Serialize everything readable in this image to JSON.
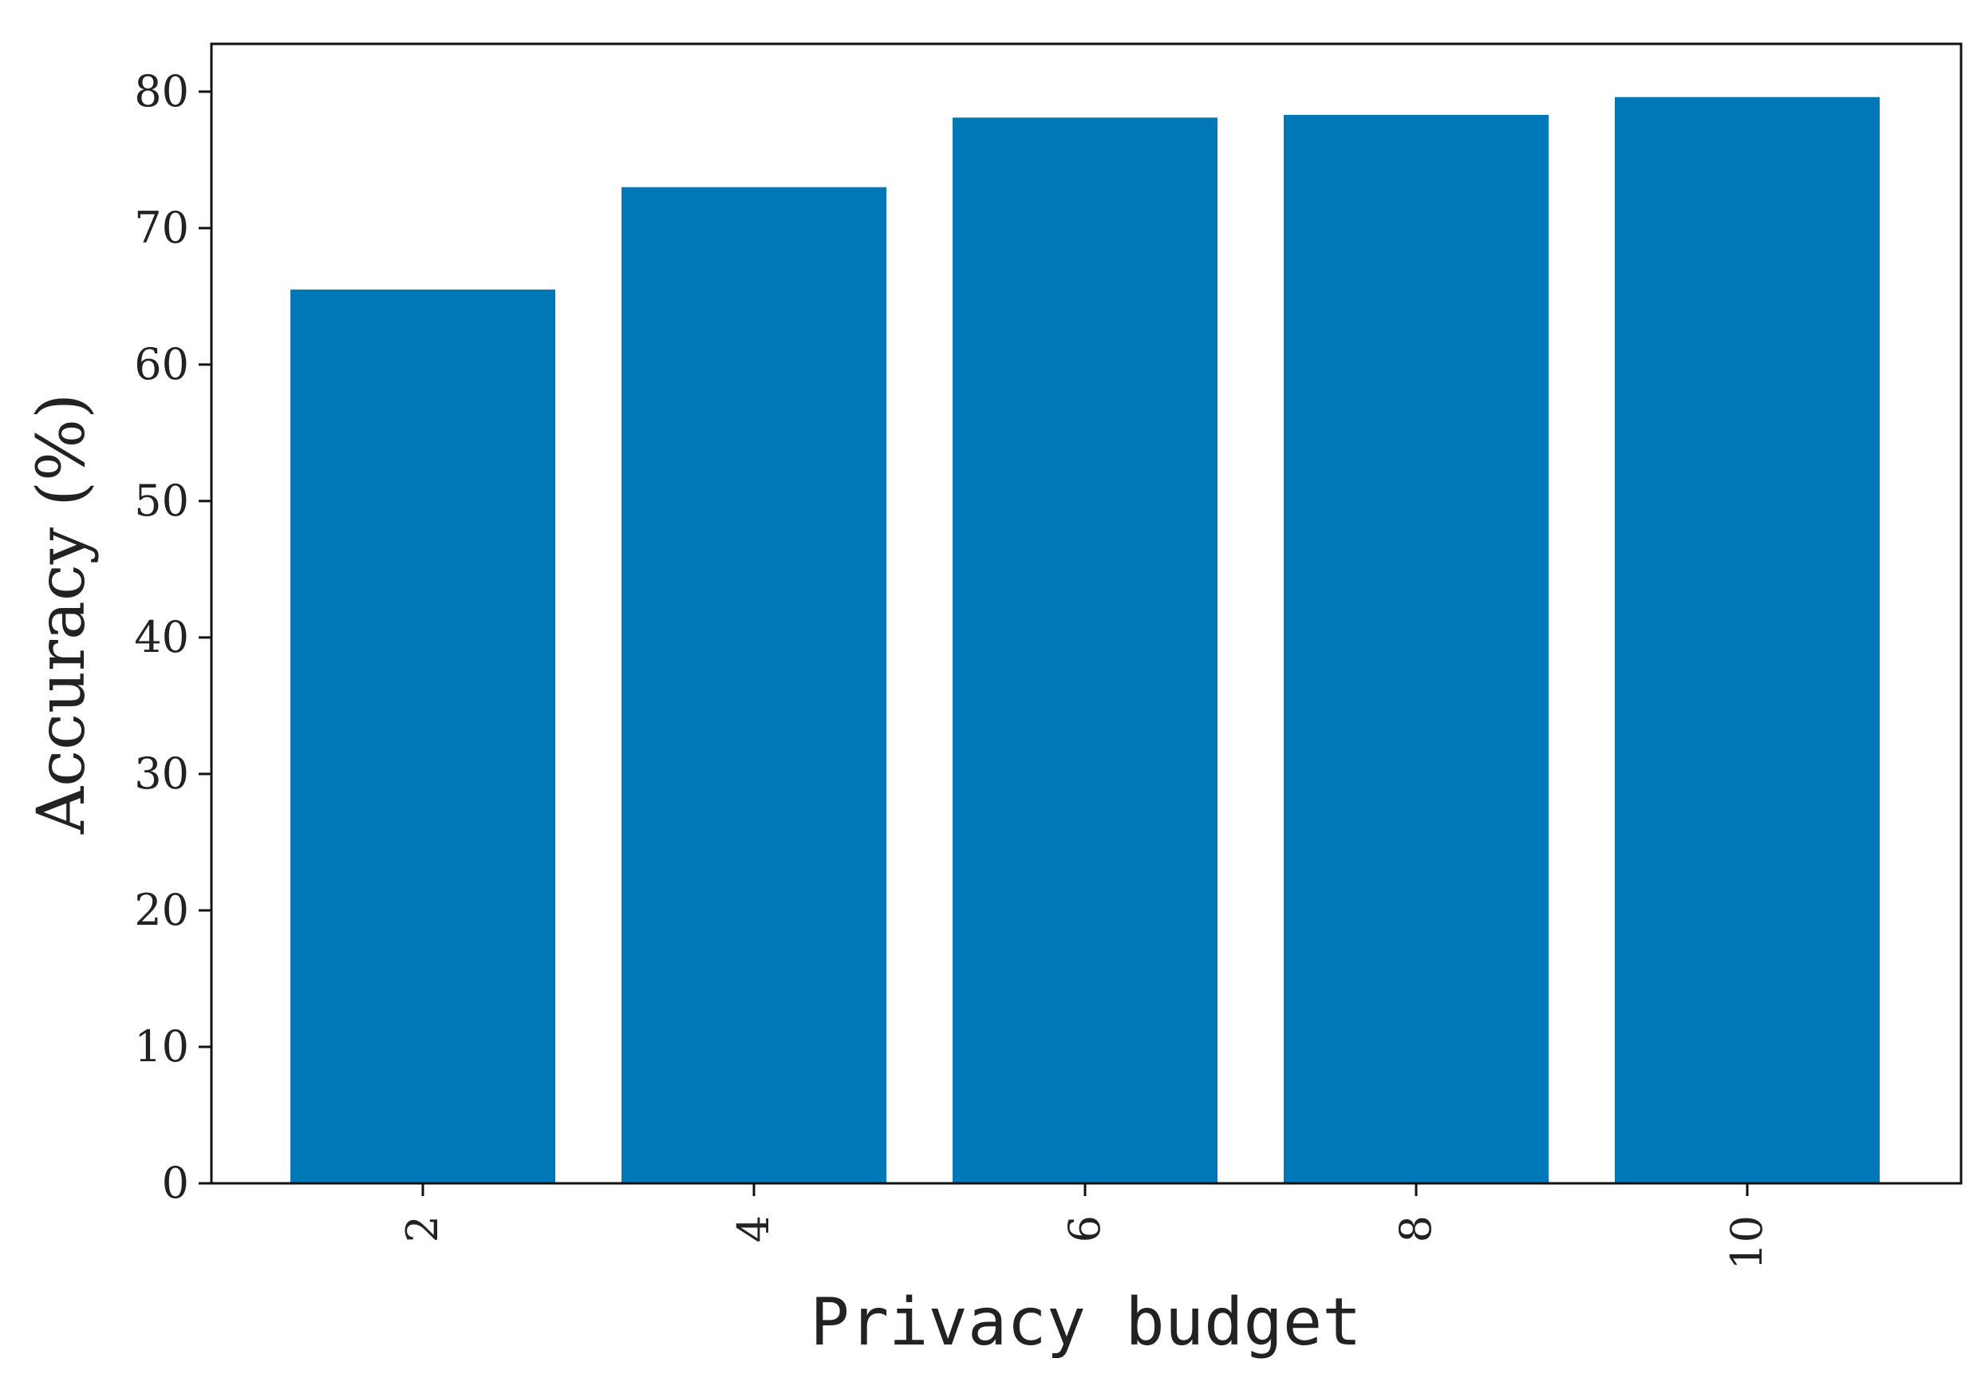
{
  "chart_data": {
    "type": "bar",
    "title": "",
    "xlabel": "Privacy budget",
    "ylabel": "Accuracy (%)",
    "categories": [
      "2",
      "4",
      "6",
      "8",
      "10"
    ],
    "values": [
      65.5,
      73.0,
      78.1,
      78.3,
      79.6
    ],
    "ylim": [
      0,
      83.5
    ],
    "yticks": [
      0,
      10,
      20,
      30,
      40,
      50,
      60,
      70,
      80
    ],
    "grid": false,
    "legend": "none",
    "bar_color": "#0077b6"
  }
}
